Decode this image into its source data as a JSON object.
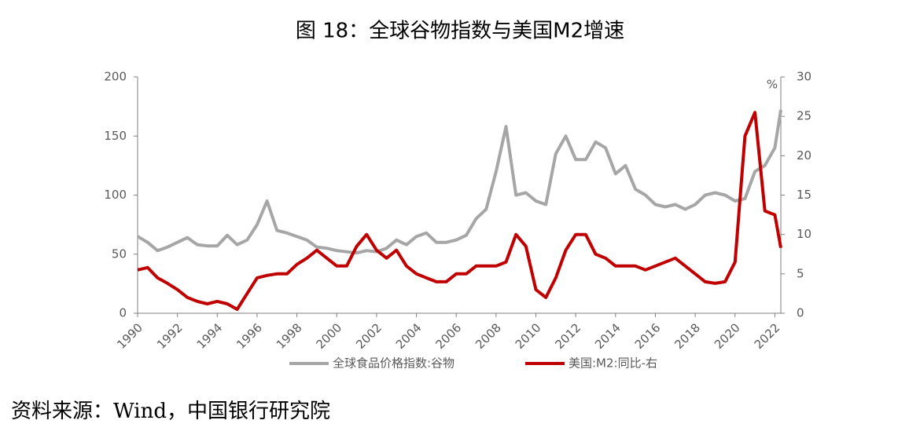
{
  "chart_data": {
    "type": "line",
    "title": "图 18：全球谷物指数与美国M2增速",
    "y2_unit": "%",
    "x": [
      1990,
      1990.5,
      1991,
      1991.5,
      1992,
      1992.5,
      1993,
      1993.5,
      1994,
      1994.5,
      1995,
      1995.5,
      1996,
      1996.5,
      1997,
      1997.5,
      1998,
      1998.5,
      1999,
      1999.5,
      2000,
      2000.5,
      2001,
      2001.5,
      2002,
      2002.5,
      2003,
      2003.5,
      2004,
      2004.5,
      2005,
      2005.5,
      2006,
      2006.5,
      2007,
      2007.5,
      2008,
      2008.5,
      2009,
      2009.5,
      2010,
      2010.5,
      2011,
      2011.5,
      2012,
      2012.5,
      2013,
      2013.5,
      2014,
      2014.5,
      2015,
      2015.5,
      2016,
      2016.5,
      2017,
      2017.5,
      2018,
      2018.5,
      2019,
      2019.5,
      2020,
      2020.5,
      2021,
      2021.5,
      2022,
      2022.3
    ],
    "series": [
      {
        "name": "全球食品价格指数:谷物",
        "color": "#a6a6a6",
        "axis": "y",
        "values": [
          65,
          60,
          53,
          56,
          60,
          64,
          58,
          57,
          57,
          66,
          58,
          62,
          75,
          95,
          70,
          68,
          65,
          62,
          56,
          55,
          53,
          52,
          51,
          53,
          52,
          55,
          62,
          58,
          65,
          68,
          60,
          60,
          62,
          66,
          80,
          88,
          120,
          158,
          100,
          102,
          95,
          92,
          135,
          150,
          130,
          130,
          145,
          140,
          118,
          125,
          105,
          100,
          92,
          90,
          92,
          88,
          92,
          100,
          102,
          100,
          95,
          97,
          120,
          125,
          140,
          172
        ]
      },
      {
        "name": "美国:M2:同比-右",
        "color": "#c00000",
        "axis": "y2",
        "values": [
          5.5,
          5.8,
          4.5,
          3.8,
          3.0,
          2.0,
          1.5,
          1.2,
          1.5,
          1.2,
          0.5,
          2.5,
          4.5,
          4.8,
          5.0,
          5.0,
          6.2,
          7.0,
          8.0,
          7.0,
          6.0,
          6.0,
          8.5,
          10.0,
          8.0,
          7.0,
          8.0,
          6.0,
          5.0,
          4.5,
          4.0,
          4.0,
          5.0,
          5.0,
          6.0,
          6.0,
          6.0,
          6.5,
          10.0,
          8.5,
          3.0,
          2.0,
          4.5,
          8.0,
          10.0,
          10.0,
          7.5,
          7.0,
          6.0,
          6.0,
          6.0,
          5.5,
          6.0,
          6.5,
          7.0,
          6.0,
          5.0,
          4.0,
          3.8,
          4.0,
          6.5,
          22.5,
          25.5,
          13.0,
          12.5,
          8.3
        ]
      }
    ],
    "xlim": [
      1990,
      2022.3
    ],
    "xticks": [
      1990,
      1992,
      1994,
      1996,
      1998,
      2000,
      2002,
      2004,
      2006,
      2008,
      2010,
      2012,
      2014,
      2016,
      2018,
      2020,
      2022
    ],
    "ylim": [
      0,
      200
    ],
    "yticks": [
      0,
      50,
      100,
      150,
      200
    ],
    "y2lim": [
      0,
      30
    ],
    "y2ticks": [
      0,
      5,
      10,
      15,
      20,
      25,
      30
    ],
    "grid": false,
    "legend": "bottom"
  },
  "source": "资料来源：Wind，中国银行研究院"
}
